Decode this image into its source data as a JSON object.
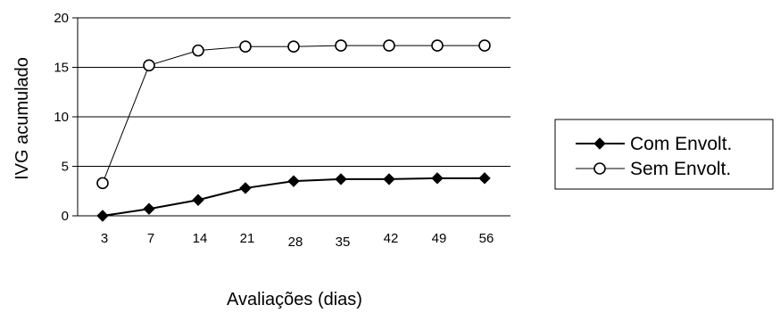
{
  "chart_data": {
    "type": "line",
    "title": "",
    "xlabel": "Avaliações (dias)",
    "ylabel": "IVG acumulado",
    "categories": [
      "3",
      "7",
      "14",
      "21",
      "28",
      "35",
      "42",
      "49",
      "56"
    ],
    "ylim": [
      0,
      20
    ],
    "yticks": [
      "0",
      "5",
      "10",
      "15",
      "20"
    ],
    "grid": "horizontal",
    "legend_position": "right",
    "series": [
      {
        "name": "Com Envolt.",
        "marker": "filled-diamond",
        "color": "#000000",
        "values": [
          0,
          0.7,
          1.6,
          2.8,
          3.5,
          3.7,
          3.7,
          3.8,
          3.8
        ]
      },
      {
        "name": "Sem Envolt.",
        "marker": "open-circle",
        "color": "#000000",
        "values": [
          3.3,
          15.2,
          16.7,
          17.1,
          17.1,
          17.2,
          17.2,
          17.2,
          17.2
        ]
      }
    ]
  }
}
